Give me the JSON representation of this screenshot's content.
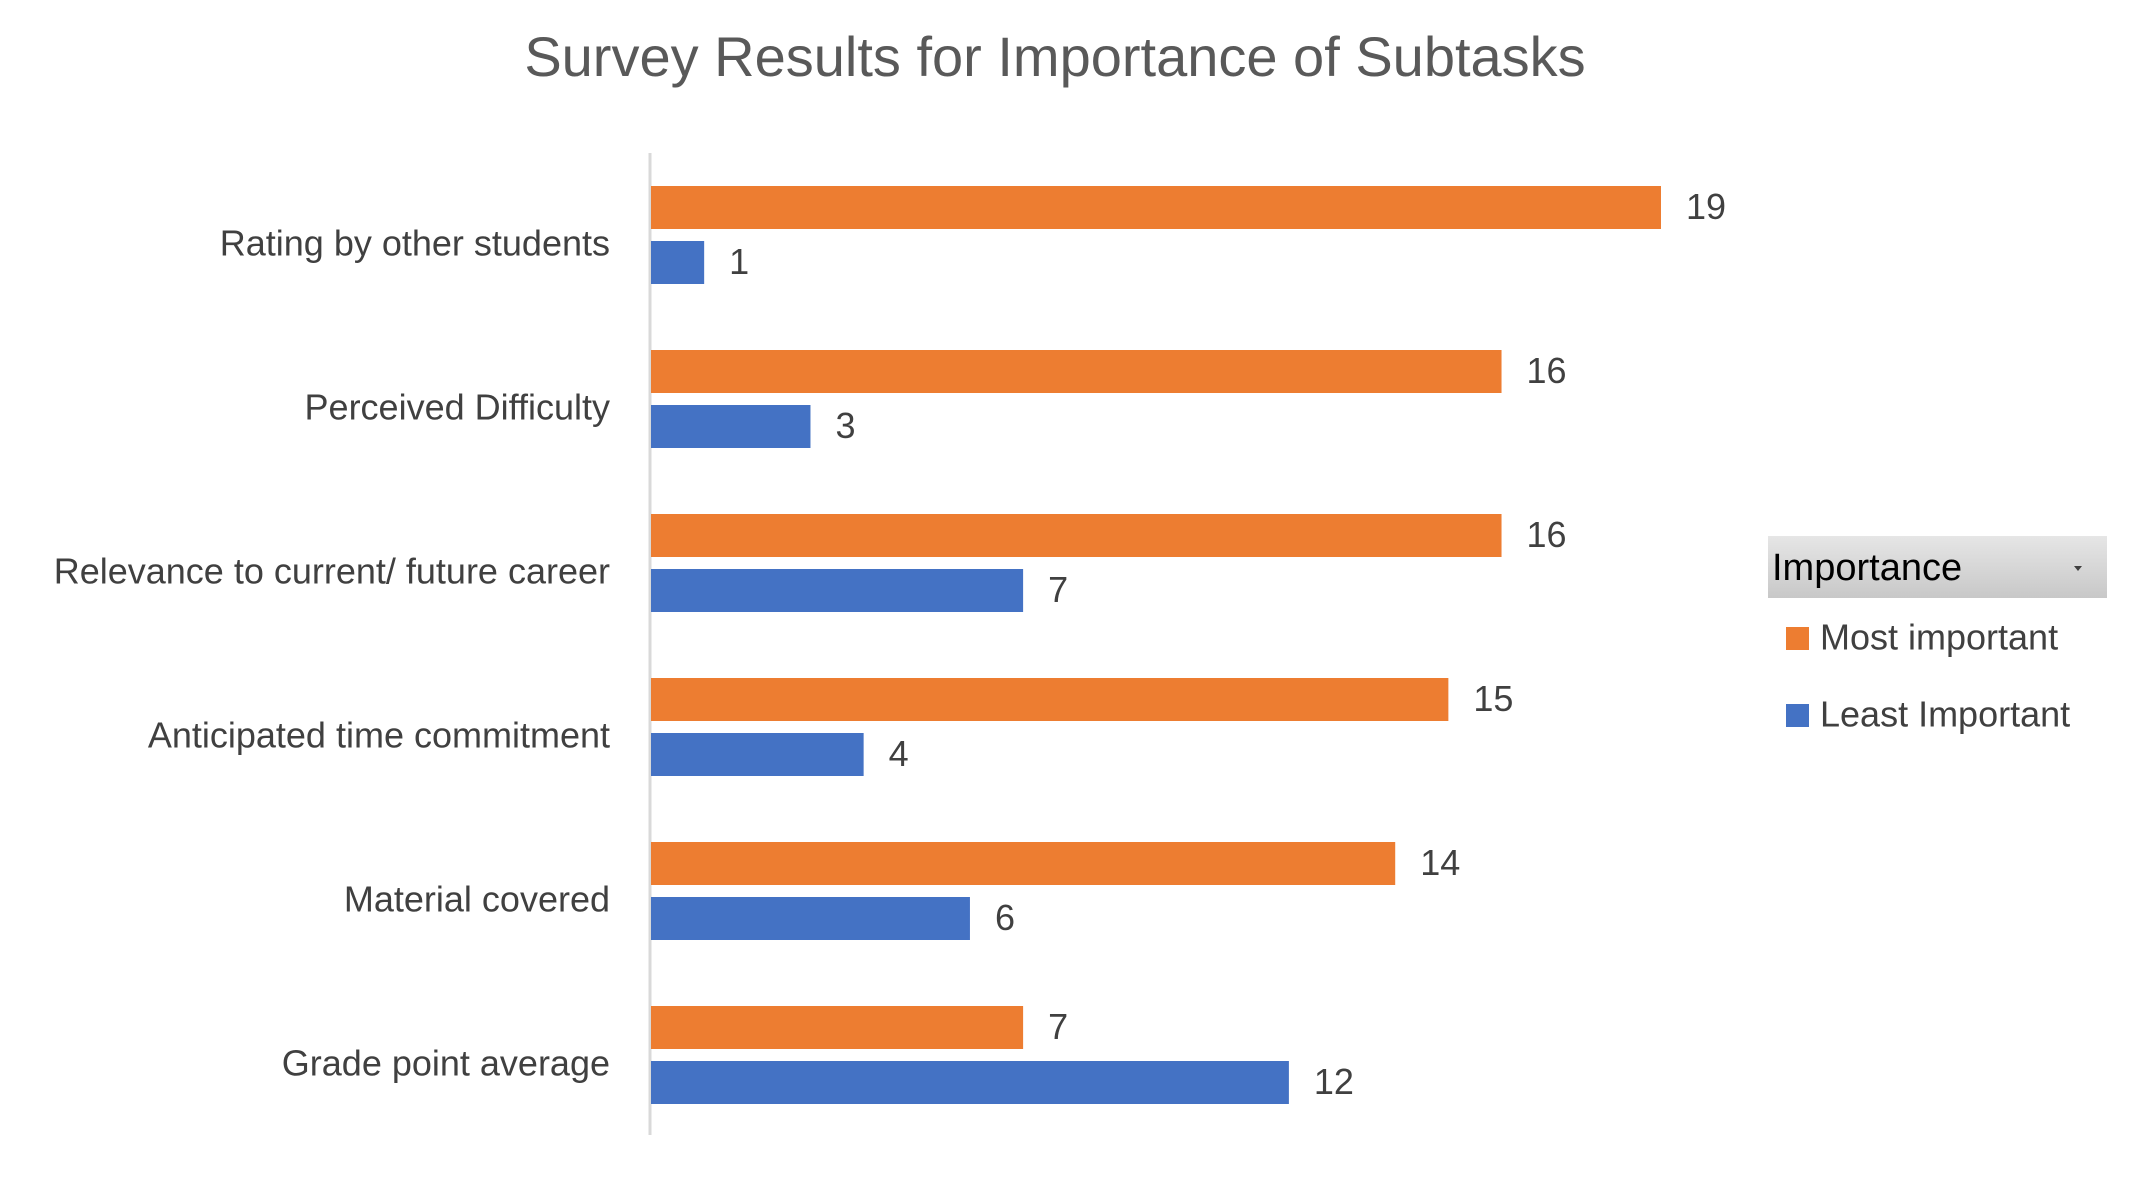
{
  "chart_data": {
    "type": "bar",
    "orientation": "horizontal",
    "title": "Survey Results for Importance of Subtasks",
    "xlabel": "",
    "ylabel": "",
    "categories": [
      "Rating by other students",
      "Perceived Difficulty",
      "Relevance to current/ future career",
      "Anticipated time commitment",
      "Material covered",
      "Grade point average"
    ],
    "series": [
      {
        "name": "Most important",
        "color": "#ED7D31",
        "values": [
          19,
          16,
          16,
          15,
          14,
          7
        ]
      },
      {
        "name": "Least Important",
        "color": "#4472C4",
        "values": [
          1,
          3,
          7,
          4,
          6,
          12
        ]
      }
    ],
    "xlim": [
      0,
      19
    ],
    "grid": false,
    "data_labels": true,
    "legend": {
      "title": "Importance",
      "position": "right",
      "dropdown_icon": "dropdown-arrow-icon"
    },
    "colors": {
      "title_text": "#595959",
      "label_text": "#404040",
      "axis_line": "#D9D9D9",
      "legend_header_bg": "#D0D0D0",
      "legend_header_text": "#000000"
    }
  }
}
